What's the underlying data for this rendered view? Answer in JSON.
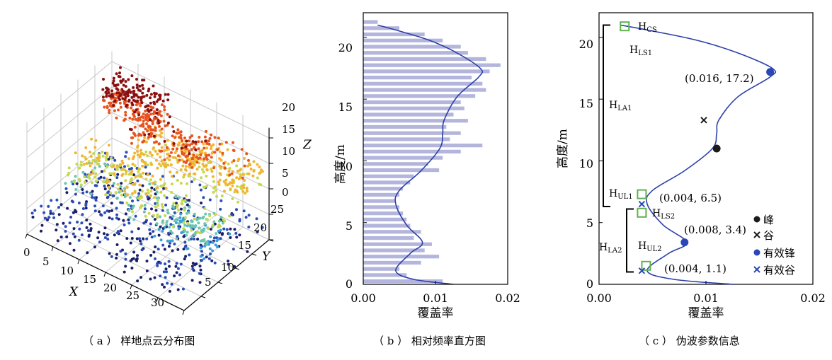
{
  "panels": {
    "a": {
      "caption": "（ a ） 样地点云分布图",
      "z_label": "Z",
      "y_label": "Y",
      "x_label": "X",
      "x_ticks": [
        "0",
        "5",
        "10",
        "15",
        "20",
        "25",
        "30"
      ],
      "y_ticks": [
        "5",
        "10",
        "15",
        "20",
        "25"
      ],
      "z_ticks": [
        "0",
        "5",
        "10",
        "15",
        "20"
      ]
    },
    "b": {
      "caption": "（ b ） 相对频率直方图",
      "xlabel": "覆盖率",
      "ylabel": "高度/m",
      "x_ticks": [
        "0.00",
        "0.01",
        "0.02"
      ],
      "y_ticks": [
        "0",
        "5",
        "10",
        "15",
        "20"
      ]
    },
    "c": {
      "caption": "（ c ） 伪波参数信息",
      "xlabel": "覆盖率",
      "ylabel": "高度/m",
      "x_ticks": [
        "0.00",
        "0.01",
        "0.02"
      ],
      "y_ticks": [
        "0",
        "5",
        "10",
        "15",
        "20"
      ],
      "legend": [
        "峰",
        "谷",
        "有效锋",
        "有效谷"
      ],
      "annotations": {
        "p1": "(0.016, 17.2)",
        "p2": "(0.004, 6.5)",
        "p3": "(0.008, 3.4)",
        "p4": "(0.004, 1.1)"
      },
      "labels": {
        "hcs": [
          "H",
          "CS"
        ],
        "hls1": [
          "H",
          "LS1"
        ],
        "hla1": [
          "H",
          "LA1"
        ],
        "hul1": [
          "H",
          "UL1"
        ],
        "hls2": [
          "H",
          "LS2"
        ],
        "hla2": [
          "H",
          "LA2"
        ],
        "hul2": [
          "H",
          "UL2"
        ]
      }
    }
  },
  "chart_data": [
    {
      "type": "scatter",
      "title": "（ a ） 样地点云分布图",
      "xlabel": "X",
      "ylabel": "Y",
      "zlabel": "Z",
      "xlim": [
        0,
        30
      ],
      "ylim": [
        0,
        25
      ],
      "zlim": [
        0,
        22
      ],
      "colormap": [
        "#1b1f6b",
        "#2a4db8",
        "#3aa0d8",
        "#69c7b0",
        "#c8d84a",
        "#f2b531",
        "#e8531f",
        "#8b1010"
      ],
      "grid": true,
      "clusters": [
        {
          "x": [
            2,
            12
          ],
          "y": [
            18,
            24
          ],
          "z": [
            15,
            21
          ]
        },
        {
          "x": [
            10,
            22
          ],
          "y": [
            14,
            22
          ],
          "z": [
            12,
            18
          ]
        },
        {
          "x": [
            18,
            30
          ],
          "y": [
            16,
            25
          ],
          "z": [
            11,
            16
          ]
        },
        {
          "x": [
            4,
            20
          ],
          "y": [
            4,
            14
          ],
          "z": [
            9,
            14
          ]
        },
        {
          "x": [
            20,
            30
          ],
          "y": [
            6,
            14
          ],
          "z": [
            6,
            11
          ]
        },
        {
          "x": [
            0,
            30
          ],
          "y": [
            0,
            25
          ],
          "z": [
            0,
            5
          ]
        }
      ]
    },
    {
      "type": "bar",
      "title": "（ b ） 相对频率直方图",
      "xlabel": "覆盖率",
      "ylabel": "高度/m",
      "xlim": [
        0,
        0.02
      ],
      "ylim": [
        0,
        22
      ],
      "bar_color": "#b3b5dc",
      "curve_color": "#2b3fa8",
      "heights": [
        0.25,
        0.75,
        1.25,
        1.75,
        2.25,
        2.75,
        3.25,
        3.75,
        4.25,
        4.75,
        5.25,
        5.75,
        6.25,
        6.75,
        7.25,
        7.75,
        8.25,
        8.75,
        9.25,
        9.75,
        10.25,
        10.75,
        11.25,
        11.75,
        12.25,
        12.75,
        13.25,
        13.75,
        14.25,
        14.75,
        15.25,
        15.75,
        16.25,
        16.75,
        17.25,
        17.75,
        18.25,
        18.75,
        19.25,
        19.75,
        20.25,
        20.75,
        21.25
      ],
      "values": [
        0.011,
        0.006,
        0.005,
        0.008,
        0.0105,
        0.0085,
        0.0095,
        0.007,
        0.008,
        0.0065,
        0.006,
        0.0055,
        0.005,
        0.0045,
        0.005,
        0.0055,
        0.0065,
        0.007,
        0.0105,
        0.009,
        0.011,
        0.0135,
        0.0165,
        0.012,
        0.0135,
        0.0115,
        0.0145,
        0.0125,
        0.014,
        0.0135,
        0.0155,
        0.017,
        0.0165,
        0.015,
        0.0175,
        0.019,
        0.017,
        0.0145,
        0.0135,
        0.011,
        0.0085,
        0.005,
        0.002
      ],
      "curve": {
        "x": [
          0.0125,
          0.007,
          0.0045,
          0.0065,
          0.0082,
          0.006,
          0.0045,
          0.005,
          0.008,
          0.0106,
          0.011,
          0.0112,
          0.013,
          0.016,
          0.0162,
          0.0128,
          0.009,
          0.0045,
          0.002
        ],
        "y": [
          0.0,
          0.4,
          1.1,
          2.5,
          3.4,
          4.8,
          6.5,
          7.6,
          9.2,
          11.0,
          12.2,
          13.3,
          15.2,
          16.8,
          17.5,
          18.8,
          19.8,
          20.6,
          21.0
        ]
      }
    },
    {
      "type": "line",
      "title": "（ c ） 伪波参数信息",
      "xlabel": "覆盖率",
      "ylabel": "高度/m",
      "xlim": [
        0,
        0.02
      ],
      "ylim": [
        0,
        22
      ],
      "curve": {
        "x": [
          0.0125,
          0.007,
          0.0045,
          0.0065,
          0.0082,
          0.006,
          0.0045,
          0.005,
          0.008,
          0.0106,
          0.011,
          0.0112,
          0.013,
          0.016,
          0.0162,
          0.0128,
          0.009,
          0.0045,
          0.002
        ],
        "y": [
          0.0,
          0.4,
          1.1,
          2.5,
          3.4,
          4.8,
          6.5,
          7.6,
          9.2,
          11.0,
          12.2,
          13.3,
          15.2,
          16.8,
          17.5,
          18.8,
          19.8,
          20.6,
          21.0
        ]
      },
      "peaks": [
        {
          "x": 0.011,
          "y": 11.0
        }
      ],
      "valleys": [
        {
          "x": 0.0098,
          "y": 13.3
        }
      ],
      "effective_peaks": [
        {
          "x": 0.016,
          "y": 17.2
        },
        {
          "x": 0.008,
          "y": 3.4
        }
      ],
      "effective_valleys": [
        {
          "x": 0.004,
          "y": 6.5
        },
        {
          "x": 0.004,
          "y": 1.1
        }
      ],
      "square_markers": [
        {
          "x": 0.0024,
          "y": 20.9
        },
        {
          "x": 0.004,
          "y": 7.3
        },
        {
          "x": 0.004,
          "y": 5.8
        },
        {
          "x": 0.0044,
          "y": 1.5
        }
      ],
      "brackets": [
        {
          "from": 6.3,
          "to": 21.0
        },
        {
          "from": 1.0,
          "to": 6.1
        }
      ],
      "curve_color": "#2b3fa8",
      "peak_color": "#1a1a1a",
      "effective_color": "#2a47b8",
      "square_color": "#5db24f"
    }
  ]
}
